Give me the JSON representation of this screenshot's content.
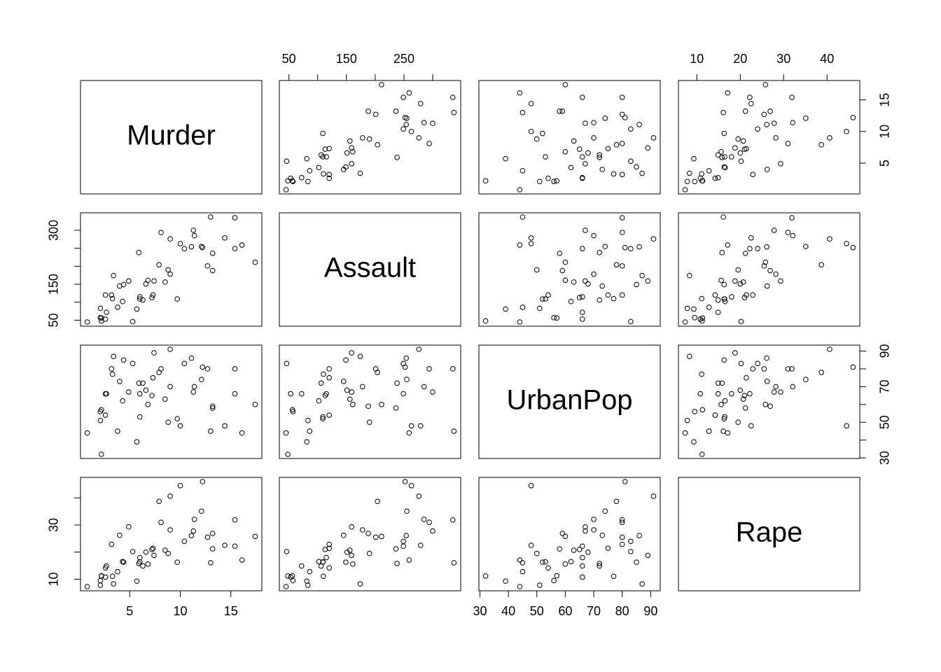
{
  "chart_data": {
    "type": "pairs",
    "color": "#000000",
    "variables": [
      {
        "name": "Murder",
        "lim": [
          0.136,
          18.064
        ],
        "ticks": [
          5,
          10,
          15
        ],
        "axis_labels": {
          "bottom": [
            5,
            10,
            15
          ],
          "right": [
            5,
            10,
            15
          ]
        },
        "values": [
          13.2,
          10.0,
          8.1,
          8.8,
          9.0,
          7.9,
          3.3,
          5.9,
          15.4,
          17.4,
          5.3,
          2.6,
          10.4,
          7.2,
          2.2,
          6.0,
          9.7,
          15.4,
          2.1,
          11.3,
          4.4,
          12.1,
          2.7,
          16.1,
          9.0,
          6.0,
          4.3,
          12.2,
          2.1,
          7.4,
          11.4,
          11.1,
          13.0,
          0.8,
          7.3,
          6.6,
          4.9,
          6.3,
          3.4,
          14.4,
          3.8,
          13.2,
          12.7,
          3.2,
          2.2,
          8.5,
          4.0,
          5.7,
          2.6,
          6.8
        ]
      },
      {
        "name": "Assault",
        "lim": [
          33.32,
          348.68
        ],
        "ticks": [
          50,
          100,
          150,
          200,
          250,
          300
        ],
        "axis_labels": {
          "top": [
            50,
            150,
            250
          ],
          "left": [
            50,
            150,
            300
          ]
        },
        "values": [
          236,
          263,
          294,
          190,
          276,
          204,
          110,
          238,
          335,
          211,
          46,
          120,
          249,
          113,
          56,
          115,
          109,
          249,
          83,
          300,
          149,
          255,
          72,
          259,
          178,
          109,
          102,
          252,
          57,
          159,
          285,
          254,
          337,
          45,
          120,
          151,
          159,
          106,
          174,
          279,
          86,
          188,
          201,
          120,
          48,
          156,
          145,
          81,
          53,
          161
        ]
      },
      {
        "name": "UrbanPop",
        "lim": [
          29.64,
          93.36
        ],
        "ticks": [
          30,
          40,
          50,
          60,
          70,
          80,
          90
        ],
        "axis_labels": {
          "bottom": [
            30,
            40,
            50,
            60,
            70,
            80,
            90
          ],
          "right": [
            30,
            50,
            70,
            90
          ]
        },
        "values": [
          58,
          48,
          80,
          50,
          91,
          78,
          77,
          72,
          80,
          60,
          83,
          54,
          83,
          65,
          57,
          66,
          52,
          66,
          51,
          67,
          85,
          74,
          66,
          44,
          70,
          53,
          62,
          81,
          56,
          89,
          70,
          86,
          45,
          44,
          75,
          68,
          67,
          72,
          87,
          48,
          45,
          59,
          80,
          80,
          32,
          63,
          73,
          39,
          66,
          60
        ]
      },
      {
        "name": "Rape",
        "lim": [
          5.752,
          47.548
        ],
        "ticks": [
          10,
          20,
          30,
          40
        ],
        "axis_labels": {
          "top": [
            10,
            20,
            30,
            40
          ],
          "left": [
            10,
            30
          ]
        },
        "values": [
          21.2,
          44.5,
          31.0,
          19.5,
          40.6,
          38.7,
          11.1,
          15.8,
          31.9,
          25.8,
          20.2,
          14.2,
          24.0,
          21.0,
          11.3,
          18.0,
          16.3,
          22.2,
          7.8,
          27.8,
          16.3,
          35.1,
          14.9,
          17.1,
          28.2,
          16.4,
          16.5,
          46.0,
          9.5,
          18.8,
          32.1,
          26.1,
          16.1,
          7.3,
          21.4,
          20.0,
          29.3,
          14.9,
          8.3,
          22.5,
          12.8,
          26.9,
          25.5,
          22.9,
          11.2,
          20.7,
          26.2,
          9.3,
          10.8,
          15.6
        ]
      }
    ]
  }
}
